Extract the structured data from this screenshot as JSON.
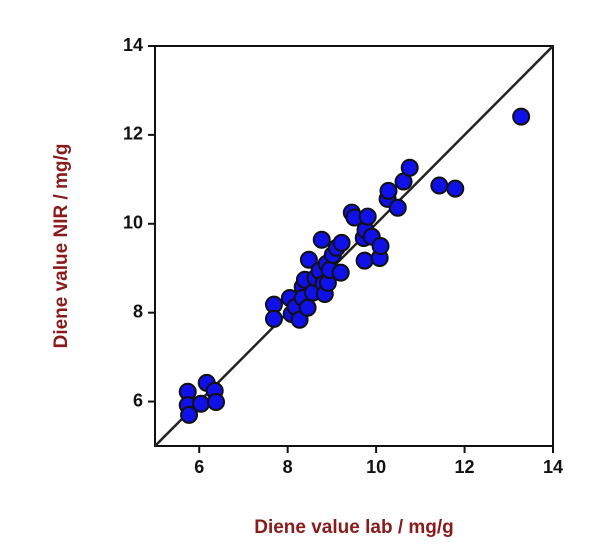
{
  "chart_data": {
    "type": "scatter",
    "xlabel": "Diene value lab / mg/g",
    "ylabel": "Diene value NIR / mg/g",
    "xlim": [
      5,
      14
    ],
    "ylim": [
      5,
      14
    ],
    "xticks": [
      6,
      8,
      10,
      12,
      14
    ],
    "yticks": [
      6,
      8,
      10,
      12,
      14
    ],
    "identity_line": true,
    "series": [
      {
        "color": "#1010e8",
        "x": [
          5.74,
          5.74,
          5.77,
          6.04,
          6.17,
          6.35,
          6.38,
          7.69,
          7.69,
          8.05,
          8.09,
          8.18,
          8.27,
          8.34,
          8.34,
          8.39,
          8.45,
          8.48,
          8.57,
          8.63,
          8.72,
          8.77,
          8.81,
          8.84,
          8.88,
          8.91,
          8.95,
          9.02,
          9.11,
          9.2,
          9.22,
          9.45,
          9.51,
          9.72,
          9.76,
          9.81,
          9.74,
          9.9,
          10.08,
          10.1,
          10.26,
          10.28,
          10.49,
          10.62,
          10.76,
          11.43,
          11.79,
          13.28
        ],
        "values": [
          6.22,
          5.92,
          5.7,
          5.95,
          6.42,
          6.24,
          5.99,
          8.18,
          7.86,
          8.33,
          7.97,
          8.13,
          7.84,
          8.58,
          8.33,
          8.74,
          8.11,
          9.19,
          8.45,
          8.78,
          8.94,
          9.64,
          8.65,
          8.42,
          9.1,
          8.67,
          8.96,
          9.3,
          9.46,
          8.9,
          9.57,
          10.25,
          10.14,
          9.68,
          9.86,
          10.16,
          9.17,
          9.71,
          9.23,
          9.5,
          10.56,
          10.74,
          10.36,
          10.95,
          11.26,
          10.86,
          10.79,
          12.41
        ]
      }
    ]
  }
}
